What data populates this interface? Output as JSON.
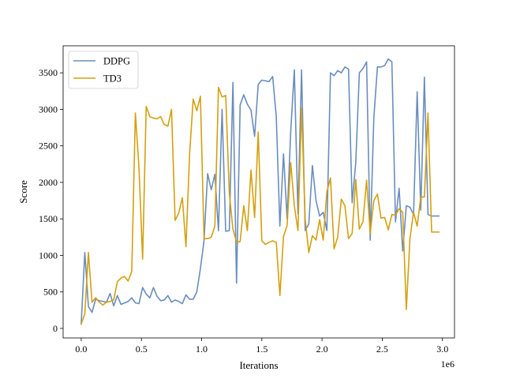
{
  "chart_data": {
    "type": "line",
    "title": "",
    "xlabel": "Iterations",
    "ylabel": "Score",
    "x_offset_label": "1e6",
    "xlim": [
      -0.15,
      3.1
    ],
    "ylim": [
      -130,
      3870
    ],
    "xticks": [
      0.0,
      0.5,
      1.0,
      1.5,
      2.0,
      2.5,
      3.0
    ],
    "xtick_labels": [
      "0.0",
      "0.5",
      "1.0",
      "1.5",
      "2.0",
      "2.5",
      "3.0"
    ],
    "yticks": [
      0,
      500,
      1000,
      1500,
      2000,
      2500,
      3000,
      3500
    ],
    "ytick_labels": [
      "0",
      "500",
      "1000",
      "1500",
      "2000",
      "2500",
      "3000",
      "3500"
    ],
    "grid": false,
    "legend_position": "upper-left",
    "series": [
      {
        "name": "DDPG",
        "color": "#6a8dbd",
        "x": [
          0.0,
          0.03,
          0.06,
          0.09,
          0.12,
          0.15,
          0.18,
          0.21,
          0.24,
          0.27,
          0.3,
          0.33,
          0.36,
          0.39,
          0.42,
          0.45,
          0.48,
          0.51,
          0.54,
          0.57,
          0.6,
          0.63,
          0.66,
          0.69,
          0.72,
          0.75,
          0.78,
          0.81,
          0.84,
          0.87,
          0.9,
          0.93,
          0.96,
          0.99,
          1.02,
          1.05,
          1.08,
          1.11,
          1.14,
          1.17,
          1.2,
          1.23,
          1.26,
          1.29,
          1.32,
          1.35,
          1.38,
          1.41,
          1.44,
          1.47,
          1.5,
          1.53,
          1.56,
          1.59,
          1.62,
          1.65,
          1.68,
          1.71,
          1.74,
          1.77,
          1.8,
          1.83,
          1.86,
          1.89,
          1.92,
          1.95,
          1.98,
          2.01,
          2.04,
          2.07,
          2.1,
          2.13,
          2.16,
          2.19,
          2.22,
          2.25,
          2.28,
          2.31,
          2.34,
          2.37,
          2.4,
          2.43,
          2.46,
          2.49,
          2.52,
          2.55,
          2.58,
          2.61,
          2.64,
          2.67,
          2.7,
          2.73,
          2.76,
          2.79,
          2.82,
          2.85,
          2.88,
          2.91,
          2.94,
          2.97
        ],
        "y": [
          60,
          1040,
          300,
          220,
          400,
          380,
          370,
          360,
          480,
          310,
          450,
          330,
          350,
          370,
          420,
          350,
          340,
          560,
          470,
          420,
          560,
          440,
          380,
          390,
          450,
          360,
          390,
          370,
          340,
          460,
          400,
          400,
          500,
          820,
          1200,
          2120,
          1900,
          2110,
          1340,
          3000,
          1330,
          1340,
          3370,
          620,
          3060,
          3200,
          3070,
          2990,
          2630,
          3340,
          3400,
          3390,
          3380,
          3450,
          2900,
          1400,
          2390,
          1500,
          2700,
          3540,
          1570,
          3540,
          1340,
          1430,
          2230,
          1750,
          1540,
          1590,
          1340,
          3500,
          3460,
          3530,
          3500,
          3580,
          3550,
          1720,
          2270,
          3500,
          3560,
          3650,
          1210,
          2880,
          3580,
          3580,
          3600,
          3690,
          3650,
          1460,
          1920,
          1060,
          1680,
          1660,
          1560,
          3240,
          1620,
          3440,
          1560,
          1540,
          1540,
          1540
        ]
      },
      {
        "name": "TD3",
        "color": "#d4a00f",
        "x": [
          0.0,
          0.03,
          0.06,
          0.09,
          0.12,
          0.15,
          0.18,
          0.21,
          0.24,
          0.27,
          0.3,
          0.33,
          0.36,
          0.39,
          0.42,
          0.45,
          0.48,
          0.51,
          0.54,
          0.57,
          0.6,
          0.63,
          0.66,
          0.69,
          0.72,
          0.75,
          0.78,
          0.81,
          0.84,
          0.87,
          0.9,
          0.93,
          0.96,
          0.99,
          1.02,
          1.05,
          1.08,
          1.11,
          1.14,
          1.17,
          1.2,
          1.23,
          1.26,
          1.29,
          1.32,
          1.35,
          1.38,
          1.41,
          1.44,
          1.47,
          1.5,
          1.53,
          1.56,
          1.59,
          1.62,
          1.65,
          1.68,
          1.71,
          1.74,
          1.77,
          1.8,
          1.83,
          1.86,
          1.89,
          1.92,
          1.95,
          1.98,
          2.01,
          2.04,
          2.07,
          2.1,
          2.13,
          2.16,
          2.19,
          2.22,
          2.25,
          2.28,
          2.31,
          2.34,
          2.37,
          2.4,
          2.43,
          2.46,
          2.49,
          2.52,
          2.55,
          2.58,
          2.61,
          2.64,
          2.67,
          2.7,
          2.73,
          2.76,
          2.79,
          2.82,
          2.85,
          2.88,
          2.91,
          2.94,
          2.97
        ],
        "y": [
          60,
          200,
          1040,
          360,
          420,
          360,
          320,
          360,
          370,
          390,
          640,
          690,
          710,
          650,
          780,
          2950,
          2200,
          950,
          3040,
          2900,
          2880,
          2870,
          2900,
          2790,
          2770,
          3000,
          1480,
          1580,
          1790,
          1120,
          2380,
          3140,
          2980,
          3180,
          1230,
          1230,
          1250,
          1400,
          3300,
          3170,
          3190,
          1850,
          1360,
          1180,
          1190,
          1680,
          1340,
          2170,
          1520,
          2690,
          1200,
          1150,
          1180,
          1200,
          1180,
          450,
          1260,
          1410,
          2270,
          1680,
          1340,
          3020,
          1500,
          1040,
          1270,
          1210,
          1490,
          1210,
          1870,
          2060,
          1090,
          1250,
          1770,
          1680,
          1230,
          1300,
          2040,
          1360,
          1460,
          2030,
          1300,
          1750,
          1840,
          1510,
          1520,
          1350,
          1560,
          1550,
          1640,
          1590,
          260,
          1230,
          1590,
          1400,
          1800,
          1800,
          2950,
          1320,
          1320,
          1320
        ]
      }
    ]
  }
}
